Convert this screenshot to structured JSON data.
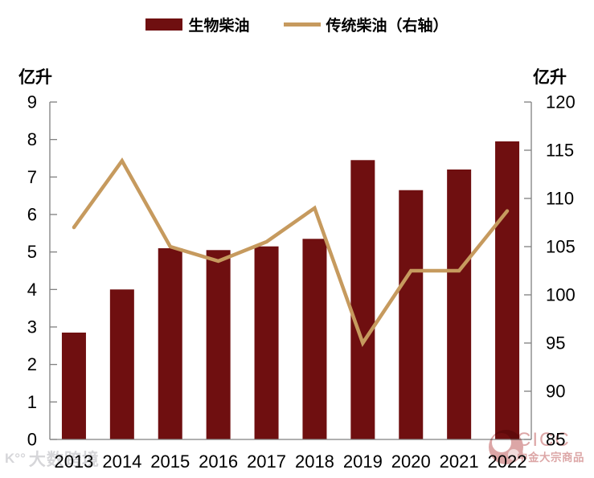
{
  "chart_data": {
    "type": "bar+line",
    "categories": [
      "2013",
      "2014",
      "2015",
      "2016",
      "2017",
      "2018",
      "2019",
      "2020",
      "2021",
      "2022"
    ],
    "series": [
      {
        "name": "生物柴油",
        "type": "bar",
        "axis": "left",
        "color": "#6F0F10",
        "values": [
          2.85,
          4.0,
          5.1,
          5.05,
          5.15,
          5.35,
          7.45,
          6.65,
          7.2,
          7.95
        ]
      },
      {
        "name": "传统柴油（右轴）",
        "type": "line",
        "axis": "right",
        "color": "#C69A5E",
        "values": [
          107,
          113.9,
          105,
          103.5,
          105.5,
          109,
          95,
          102.5,
          102.5,
          108.7
        ]
      }
    ],
    "left_axis": {
      "label": "亿升",
      "min": 0,
      "max": 9,
      "tick_step": 1
    },
    "right_axis": {
      "label": "亿升",
      "min": 85,
      "max": 120,
      "tick_step": 5
    },
    "grid": false,
    "legend_position": "top"
  },
  "colors": {
    "bar": "#6F0F10",
    "line": "#C69A5E",
    "axis": "#808080",
    "watermark_red": "#C05C5C",
    "watermark_gray": "#9898A0"
  },
  "watermarks": {
    "bottom_left_mark": "K°°",
    "bottom_left_text": "大数跨境",
    "cicc_text": "CICC",
    "cicc_subtext": "中金大宗商品"
  }
}
